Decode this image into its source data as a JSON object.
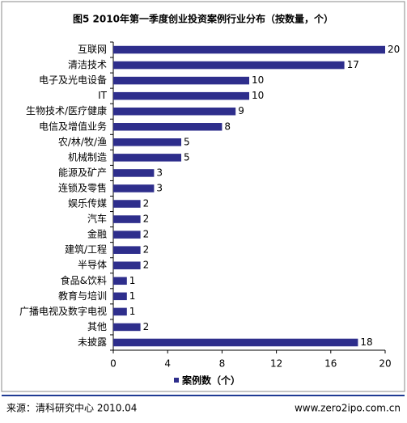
{
  "chart_data": {
    "type": "bar",
    "orientation": "horizontal",
    "title": "图5  2010年第一季度创业投资案例行业分布（按数量，个）",
    "categories": [
      "互联网",
      "清洁技术",
      "电子及光电设备",
      "IT",
      "生物技术/医疗健康",
      "电信及增值业务",
      "农/林/牧/渔",
      "机械制造",
      "能源及矿产",
      "连锁及零售",
      "娱乐传媒",
      "汽车",
      "金融",
      "建筑/工程",
      "半导体",
      "食品&饮料",
      "教育与培训",
      "广播电视及数字电视",
      "其他",
      "未披露"
    ],
    "series": [
      {
        "name": "案例数（个）",
        "color": "#2e2e8c",
        "values": [
          20,
          17,
          10,
          10,
          9,
          8,
          5,
          5,
          3,
          3,
          2,
          2,
          2,
          2,
          2,
          1,
          1,
          1,
          2,
          18
        ]
      }
    ],
    "xlim": [
      0,
      20
    ],
    "xticks": [
      0,
      4,
      8,
      12,
      16,
      20
    ],
    "source": "来源：清科研究中心 2010.04",
    "website": "www.zero2ipo.com.cn"
  }
}
